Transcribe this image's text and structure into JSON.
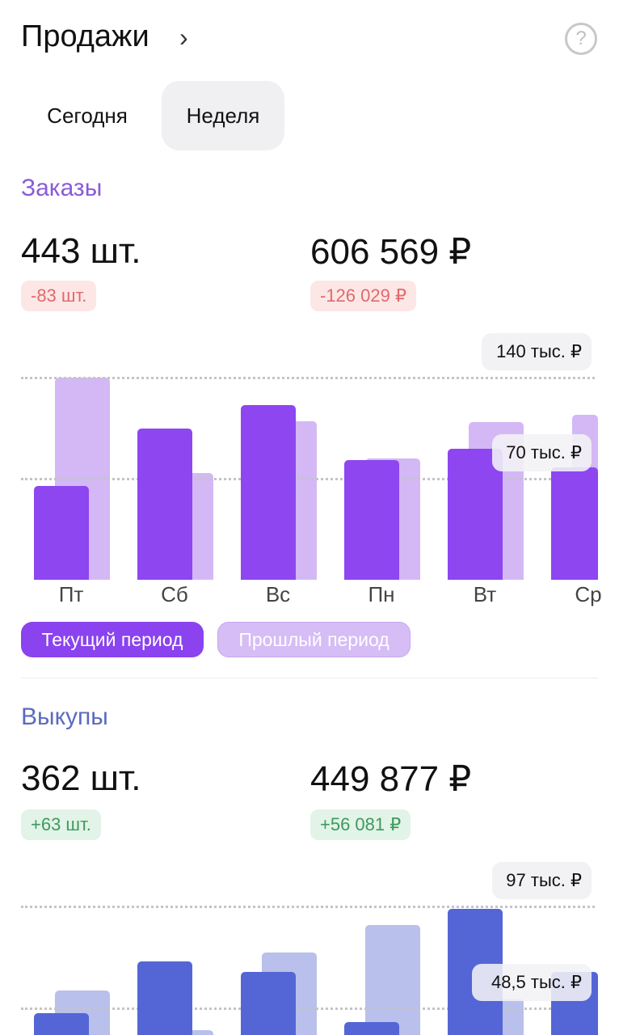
{
  "header": {
    "title": "Продажи",
    "chevron_icon": "chevron-right-icon",
    "help_icon": "question-circle-icon"
  },
  "tabs": [
    {
      "label": "Сегодня",
      "selected": false
    },
    {
      "label": "Неделя",
      "selected": true
    }
  ],
  "orders": {
    "title": "Заказы",
    "count": "443 шт.",
    "count_delta": "-83 шт.",
    "sum": "606 569 ₽",
    "sum_delta": "-126 029 ₽"
  },
  "buyouts": {
    "title": "Выкупы",
    "count": "362 шт.",
    "count_delta": "+63 шт.",
    "sum": "449 877 ₽",
    "sum_delta": "+56 081 ₽"
  },
  "legend": {
    "current": "Текущий период",
    "previous": "Прошлый период"
  },
  "colors": {
    "orders_current": "#8e46f0",
    "orders_previous": "#d3b8f5",
    "buyouts_current": "#5466d6",
    "buyouts_previous": "#b8c0eb",
    "negative": "#e06a6a",
    "positive": "#3f9a5c"
  },
  "chart_data": [
    {
      "type": "bar",
      "categories": [
        "Пт",
        "Сб",
        "Вс",
        "Пн",
        "Вт",
        "Ср"
      ],
      "series": [
        {
          "name": "Текущий период",
          "values": [
            65,
            105,
            121,
            83,
            91,
            78
          ]
        },
        {
          "name": "Прошлый период",
          "values": [
            140,
            74,
            110,
            84,
            109,
            114
          ]
        }
      ],
      "tick_labels": [
        "140 тыс. ₽",
        "70 тыс. ₽"
      ],
      "ticks": [
        140,
        70
      ],
      "unit": "тыс. ₽",
      "ylim": [
        0,
        140
      ],
      "grid": true,
      "legend": "bottom-left"
    },
    {
      "type": "bar",
      "categories": [
        "Пт",
        "Сб",
        "Вс",
        "Пн",
        "Вт",
        "Ср"
      ],
      "series": [
        {
          "name": "Текущий период",
          "values": [
            46,
            71,
            66,
            42,
            96,
            66
          ]
        },
        {
          "name": "Прошлый период",
          "values": [
            57,
            38,
            75,
            88,
            53,
            null
          ]
        }
      ],
      "tick_labels": [
        "97 тыс. ₽",
        "48,5 тыс. ₽"
      ],
      "ticks": [
        97,
        48.5
      ],
      "unit": "тыс. ₽",
      "ylim": [
        0,
        97
      ],
      "grid": true
    }
  ]
}
